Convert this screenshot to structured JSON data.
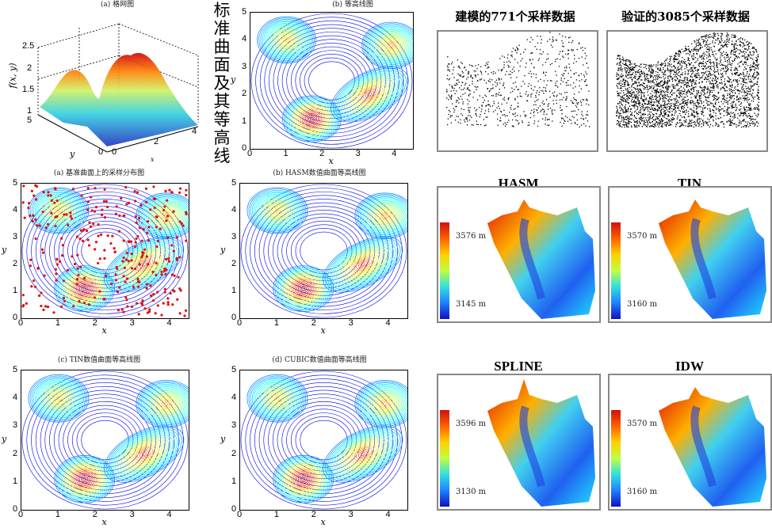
{
  "side_label": "标准曲面及其等高线",
  "panels": {
    "mesh": {
      "title": "(a) 格网图",
      "zlabel": "f(x, y)",
      "ylabel": "y",
      "xlabel": "x",
      "zticks": [
        "2.5",
        "2",
        "1.5",
        "1"
      ],
      "yticks": [
        "5",
        "0"
      ],
      "xticks": [
        "0",
        "2",
        "4"
      ]
    },
    "contour": {
      "title": "(b) 等高线图"
    },
    "sampling": {
      "title": "(a) 基准曲面上的采样分布图"
    },
    "hasm": {
      "title": "(b) HASM数值曲面等高线图"
    },
    "tin": {
      "title": "(c) TIN数值曲面等高线图"
    },
    "cubic": {
      "title": "(d) CUBIC数值曲面等高线图"
    }
  },
  "axes": {
    "xlabel": "x",
    "ylabel": "y",
    "xticks": [
      "0",
      "1",
      "2",
      "3",
      "4"
    ],
    "yticks": [
      "0",
      "1",
      "2",
      "3",
      "4",
      "5"
    ]
  },
  "samples": {
    "model_title": "建模的771个采样数据",
    "verify_title": "验证的3085个采样数据"
  },
  "dems": [
    {
      "title": "HASM",
      "max": "3576 m",
      "min": "3145 m"
    },
    {
      "title": "TIN",
      "max": "3570 m",
      "min": "3160 m"
    },
    {
      "title": "SPLINE",
      "max": "3596 m",
      "min": "3130 m"
    },
    {
      "title": "IDW",
      "max": "3570 m",
      "min": "3160 m"
    }
  ],
  "chart_data": {
    "type": "contour",
    "xlim": [
      0,
      4.5
    ],
    "ylim": [
      0,
      5
    ],
    "peaks": [
      {
        "x": 1.7,
        "y": 1.1,
        "h": 2.6
      },
      {
        "x": 3.3,
        "y": 2.0,
        "h": 2.2
      },
      {
        "x": 1.0,
        "y": 4.0,
        "h": 1.9
      },
      {
        "x": 3.9,
        "y": 3.8,
        "h": 2.0
      }
    ],
    "zlim": [
      1,
      2.5
    ],
    "colormap": "jet",
    "sample_color": "#e01010"
  }
}
